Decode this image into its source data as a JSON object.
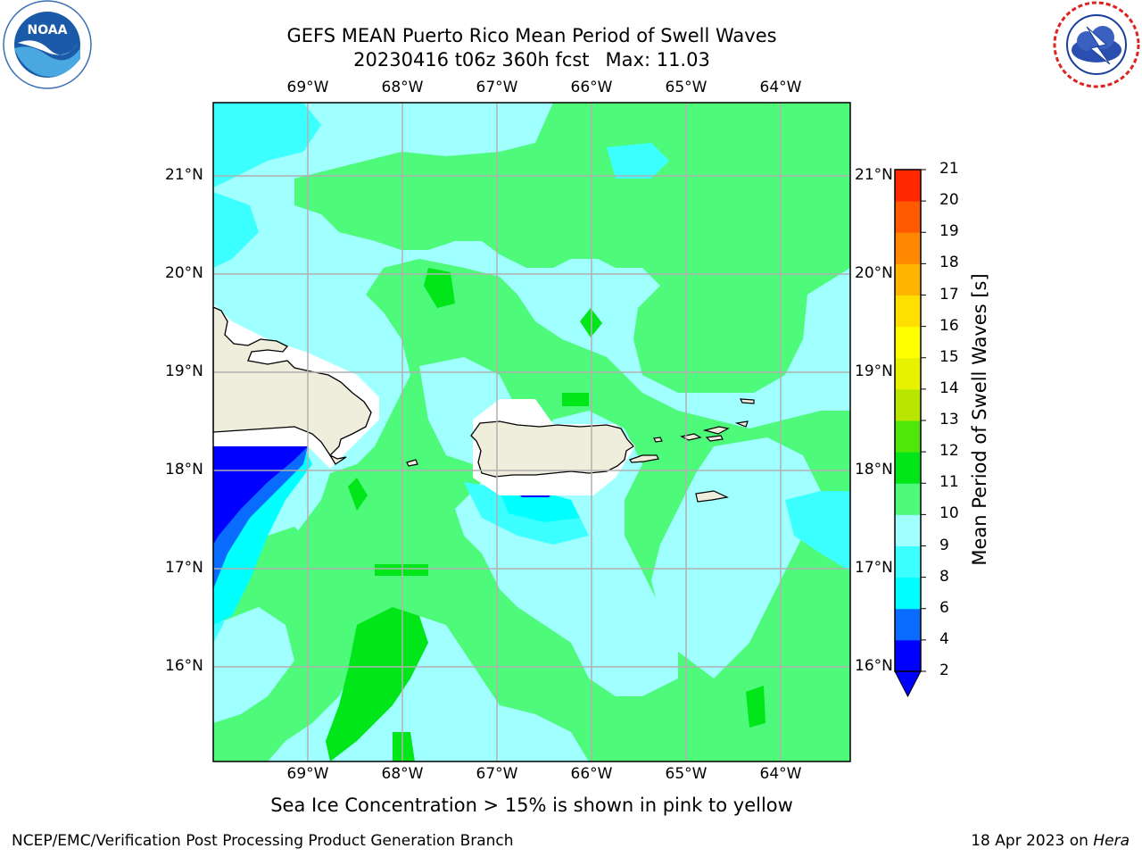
{
  "title_line1": "GEFS MEAN Puerto Rico Mean Period of Swell Waves",
  "title_date": "20230416 t06z 360h fcst",
  "title_max": "Max: 11.03",
  "lon_labels": [
    "69°W",
    "68°W",
    "67°W",
    "66°W",
    "65°W",
    "64°W"
  ],
  "lat_labels": [
    "21°N",
    "20°N",
    "19°N",
    "18°N",
    "17°N",
    "16°N"
  ],
  "colorbar": {
    "label": "Mean Period of Swell Waves [s]",
    "ticks": [
      "2",
      "4",
      "6",
      "8",
      "9",
      "10",
      "11",
      "12",
      "13",
      "14",
      "15",
      "16",
      "17",
      "18",
      "19",
      "20",
      "21"
    ],
    "colors": [
      "#0000ff",
      "#0a6cff",
      "#00ffff",
      "#3cffff",
      "#a0ffff",
      "#4efa7a",
      "#00e619",
      "#51e60a",
      "#b8e600",
      "#e6f200",
      "#ffff00",
      "#ffdf00",
      "#ffb400",
      "#ff8800",
      "#ff5a00",
      "#ff2800"
    ]
  },
  "map_colors": {
    "ocean_low": "#0000ff",
    "ocean_mid": "#0a6cff",
    "cyan": "#00ffff",
    "light_cyan": "#a0ffff",
    "mid_cyan": "#3cffff",
    "green": "#4efa7a",
    "dark_green": "#00e619",
    "land": "#efeedc"
  },
  "sea_ice_note": "Sea Ice Concentration > 15% is shown in pink to yellow",
  "footer_left": "NCEP/EMC/Verification Post Processing Product Generation Branch",
  "footer_date": "18 Apr 2023 on",
  "footer_machine": "Hera",
  "logos": {
    "left": "noaa-logo",
    "right": "national-weather-service-logo"
  }
}
